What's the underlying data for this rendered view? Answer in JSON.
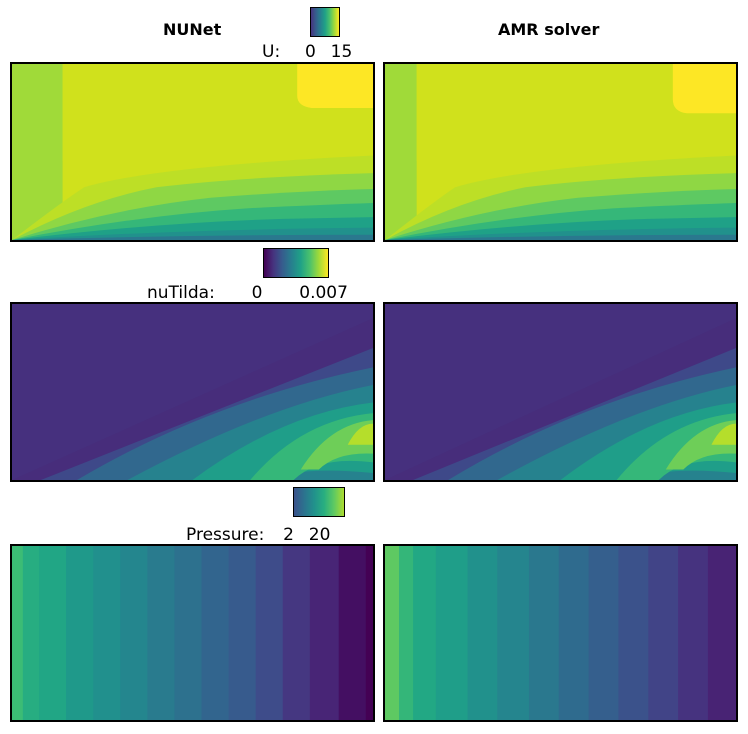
{
  "headers": {
    "left": "NUNet",
    "right": "AMR solver"
  },
  "fields": [
    {
      "label": "U:",
      "min": "0",
      "max": "15",
      "colors": [
        "#46327e",
        "#365c8d",
        "#277f8e",
        "#1fa187",
        "#4ac16d",
        "#a0da39",
        "#fde725"
      ]
    },
    {
      "label": "nuTilda:",
      "min": "0",
      "max": "0.007",
      "colors": [
        "#440154",
        "#46327e",
        "#365c8d",
        "#277f8e",
        "#1fa187",
        "#4ac16d",
        "#a0da39",
        "#fde725"
      ]
    },
    {
      "label": "Pressure:",
      "min": "2",
      "max": "20",
      "colors": [
        "#3b528b",
        "#2c728e",
        "#21918c",
        "#28ae80",
        "#5ec962",
        "#addc30"
      ]
    }
  ]
}
